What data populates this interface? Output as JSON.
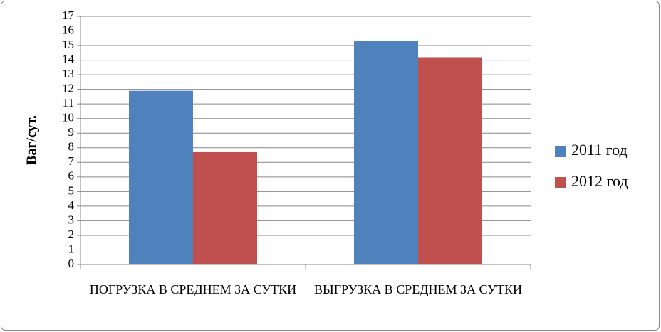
{
  "chart_data": {
    "type": "bar",
    "y_label": "Ваг/сут.",
    "categories": [
      "ПОГРУЗКА В СРЕДНЕМ ЗА СУТКИ",
      "ВЫГРУЗКА В СРЕДНЕМ ЗА СУТКИ"
    ],
    "series": [
      {
        "name": "2011 год",
        "color": "#4f81bd",
        "values": [
          11.9,
          15.3
        ]
      },
      {
        "name": "2012 год",
        "color": "#c0504d",
        "values": [
          7.7,
          14.2
        ]
      }
    ],
    "ylim": [
      0,
      17
    ],
    "yticks": [
      0,
      1,
      2,
      3,
      4,
      5,
      6,
      7,
      8,
      9,
      10,
      11,
      12,
      13,
      14,
      15,
      16,
      17
    ],
    "grid": true,
    "legend": "right"
  }
}
